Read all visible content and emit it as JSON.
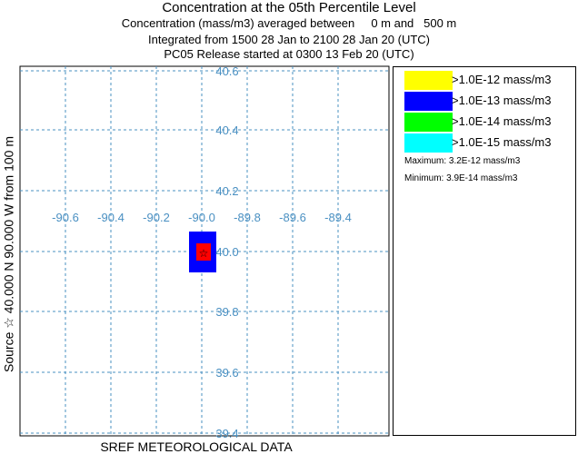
{
  "titles": {
    "line1": "Concentration at the 05th Percentile Level",
    "line2": "Concentration (mass/m3) averaged between     0 m and   500 m",
    "line3": "Integrated from 1500 28 Jan to 2100 28 Jan 20 (UTC)",
    "line4": "PC05 Release started at 0300 13 Feb 20 (UTC)"
  },
  "map": {
    "longitudes": [
      "-90.6",
      "-90.4",
      "-90.2",
      "-90.0",
      "-89.8",
      "-89.6",
      "-89.4"
    ],
    "latitudes": [
      "40.6",
      "40.4",
      "40.2",
      "40.0",
      "39.8",
      "39.6",
      "39.4"
    ],
    "grid_color": "#4a90c2",
    "plume_outer_color": "#0000ff",
    "plume_inner_color": "#ff0000",
    "source_marker": "☆",
    "source_marker_color": "#000000"
  },
  "legend": {
    "items": [
      {
        "label": ">1.0E-12 mass/m3",
        "color": "#ffff00"
      },
      {
        "label": ">1.0E-13 mass/m3",
        "color": "#0000ff"
      },
      {
        "label": ">1.0E-14 mass/m3",
        "color": "#00ff00"
      },
      {
        "label": ">1.0E-15 mass/m3",
        "color": "#00ffff"
      }
    ],
    "maximum": "Maximum: 3.2E-12 mass/m3",
    "minimum": "Minimum: 3.9E-14 mass/m3"
  },
  "side_label": "Source ☆ 40.000  N  90.000  W      from  100 m",
  "footer": "SREF METEOROLOGICAL DATA"
}
